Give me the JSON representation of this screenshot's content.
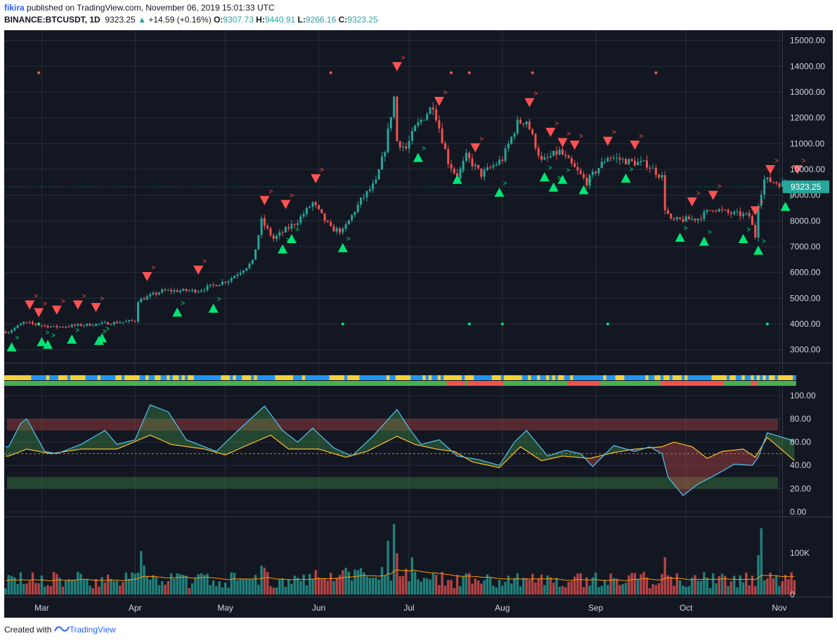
{
  "header": {
    "user": "fikira",
    "published_text": " published on TradingView.com, November 06, 2019 15:01:33 UTC",
    "symbol": "BINANCE:BTCUSDT, 1D",
    "last": "9323.25",
    "change": "+14.59 (+0.16%)",
    "open_label": "O:",
    "open": "9307.73",
    "high_label": "H:",
    "high": "9440.91",
    "low_label": "L:",
    "low": "9266.16",
    "close_label": "C:",
    "close": "9323.25"
  },
  "footer": {
    "created_with": "Created with",
    "brand": "TradingView"
  },
  "colors": {
    "bg": "#131722",
    "up": "#26a69a",
    "down": "#ef5350",
    "signal_up": "#00e676",
    "signal_down": "#ff5252",
    "grid": "#2a2e39",
    "text": "#d1d4dc",
    "price_tag": "#26a69a",
    "rsi_fast": "#4fc3f7",
    "rsi_slow": "#fbc02d",
    "vol_ma": "#ff9800"
  },
  "chart_data": [
    {
      "type": "candlestick",
      "title": "BINANCE:BTCUSDT, 1D",
      "y_ticks": [
        3000,
        4000,
        5000,
        6000,
        7000,
        8000,
        9000,
        10000,
        11000,
        12000,
        13000,
        14000,
        15000
      ],
      "y_tick_labels": [
        "3000.00",
        "4000.00",
        "5000.00",
        "6000.00",
        "7000.00",
        "8000.00",
        "9000.00",
        "10000.00",
        "11000.00",
        "12000.00",
        "13000.00",
        "14000.00",
        "15000.00"
      ],
      "ylim": [
        2500,
        15400
      ],
      "x_ticks": [
        "Mar",
        "Apr",
        "May",
        "Jun",
        "Jul",
        "Aug",
        "Sep",
        "Oct",
        "Nov"
      ],
      "last_price_label": "9323.25",
      "close_anchors": [
        [
          "2019-02-18",
          3700
        ],
        [
          "2019-02-23",
          4050
        ],
        [
          "2019-03-05",
          3880
        ],
        [
          "2019-03-20",
          4000
        ],
        [
          "2019-04-01",
          4120
        ],
        [
          "2019-04-02",
          4900
        ],
        [
          "2019-04-10",
          5280
        ],
        [
          "2019-04-22",
          5300
        ],
        [
          "2019-05-02",
          5700
        ],
        [
          "2019-05-10",
          6400
        ],
        [
          "2019-05-13",
          8000
        ],
        [
          "2019-05-17",
          7300
        ],
        [
          "2019-05-25",
          8000
        ],
        [
          "2019-05-30",
          8700
        ],
        [
          "2019-06-05",
          7700
        ],
        [
          "2019-06-09",
          7600
        ],
        [
          "2019-06-15",
          8800
        ],
        [
          "2019-06-20",
          9500
        ],
        [
          "2019-06-23",
          10800
        ],
        [
          "2019-06-26",
          12800
        ],
        [
          "2019-06-27",
          11100
        ],
        [
          "2019-06-30",
          10800
        ],
        [
          "2019-07-03",
          11600
        ],
        [
          "2019-07-09",
          12500
        ],
        [
          "2019-07-14",
          10300
        ],
        [
          "2019-07-17",
          9700
        ],
        [
          "2019-07-20",
          10500
        ],
        [
          "2019-07-25",
          9800
        ],
        [
          "2019-08-01",
          10400
        ],
        [
          "2019-08-06",
          11800
        ],
        [
          "2019-08-09",
          11900
        ],
        [
          "2019-08-14",
          10300
        ],
        [
          "2019-08-20",
          10700
        ],
        [
          "2019-08-29",
          9500
        ],
        [
          "2019-09-05",
          10500
        ],
        [
          "2019-09-12",
          10300
        ],
        [
          "2019-09-18",
          10200
        ],
        [
          "2019-09-23",
          9700
        ],
        [
          "2019-09-24",
          8500
        ],
        [
          "2019-09-26",
          8000
        ],
        [
          "2019-10-05",
          8100
        ],
        [
          "2019-10-10",
          8500
        ],
        [
          "2019-10-15",
          8300
        ],
        [
          "2019-10-22",
          8200
        ],
        [
          "2019-10-24",
          7400
        ],
        [
          "2019-10-25",
          8700
        ],
        [
          "2019-10-27",
          9600
        ],
        [
          "2019-11-06",
          9323
        ]
      ],
      "down_signals": [
        [
          "2019-02-25",
          4750
        ],
        [
          "2019-02-28",
          4450
        ],
        [
          "2019-03-06",
          4550
        ],
        [
          "2019-03-13",
          4750
        ],
        [
          "2019-03-19",
          4650
        ],
        [
          "2019-04-05",
          5850
        ],
        [
          "2019-04-22",
          6100
        ],
        [
          "2019-05-14",
          8800
        ],
        [
          "2019-05-21",
          8650
        ],
        [
          "2019-05-31",
          9650
        ],
        [
          "2019-06-27",
          14000
        ],
        [
          "2019-07-11",
          12650
        ],
        [
          "2019-07-23",
          10850
        ],
        [
          "2019-08-10",
          12600
        ],
        [
          "2019-08-17",
          11450
        ],
        [
          "2019-08-21",
          11050
        ],
        [
          "2019-08-25",
          10950
        ],
        [
          "2019-09-05",
          11100
        ],
        [
          "2019-09-14",
          10950
        ],
        [
          "2019-10-03",
          8750
        ],
        [
          "2019-10-10",
          9000
        ],
        [
          "2019-10-24",
          8400
        ],
        [
          "2019-10-29",
          10000
        ],
        [
          "2019-11-07",
          10000
        ]
      ],
      "up_signals": [
        [
          "2019-02-19",
          3100
        ],
        [
          "2019-03-01",
          3300
        ],
        [
          "2019-03-03",
          3200
        ],
        [
          "2019-03-11",
          3400
        ],
        [
          "2019-03-20",
          3350
        ],
        [
          "2019-03-21",
          3450
        ],
        [
          "2019-04-15",
          4450
        ],
        [
          "2019-04-27",
          4600
        ],
        [
          "2019-05-20",
          6900
        ],
        [
          "2019-05-23",
          7300
        ],
        [
          "2019-06-09",
          6950
        ],
        [
          "2019-07-04",
          10450
        ],
        [
          "2019-07-17",
          9600
        ],
        [
          "2019-07-31",
          9100
        ],
        [
          "2019-08-15",
          9700
        ],
        [
          "2019-08-18",
          9300
        ],
        [
          "2019-08-21",
          9600
        ],
        [
          "2019-08-28",
          9200
        ],
        [
          "2019-09-11",
          9650
        ],
        [
          "2019-09-29",
          7350
        ],
        [
          "2019-10-07",
          7200
        ],
        [
          "2019-10-20",
          7300
        ],
        [
          "2019-10-25",
          6850
        ],
        [
          "2019-11-03",
          8550
        ]
      ],
      "pivot_dots_top": [
        "2019-02-28",
        "2019-06-05",
        "2019-07-15",
        "2019-07-21",
        "2019-08-11",
        "2019-09-21"
      ],
      "pivot_dots_bottom": [
        "2019-02-28",
        "2019-06-09",
        "2019-07-21",
        "2019-08-01",
        "2019-09-05",
        "2019-10-28"
      ]
    },
    {
      "type": "line",
      "title": "",
      "y_ticks": [
        0,
        20,
        40,
        60,
        80,
        100
      ],
      "y_tick_labels": [
        "0.00",
        "20.00",
        "40.00",
        "60.00",
        "80.00",
        "100.00"
      ],
      "ylim": [
        -4,
        106
      ],
      "bands": [
        {
          "from": 70,
          "to": 80,
          "color": "#ef5350"
        },
        {
          "from": 20,
          "to": 30,
          "color": "#4caf50"
        }
      ],
      "midline": 50,
      "series": [
        {
          "color": "#4fc3f7",
          "anchors": [
            [
              "2019-02-18",
              56
            ],
            [
              "2019-02-22",
              76
            ],
            [
              "2019-02-24",
              80
            ],
            [
              "2019-03-02",
              52
            ],
            [
              "2019-03-06",
              50
            ],
            [
              "2019-03-14",
              58
            ],
            [
              "2019-03-22",
              70
            ],
            [
              "2019-03-26",
              58
            ],
            [
              "2019-04-01",
              62
            ],
            [
              "2019-04-06",
              92
            ],
            [
              "2019-04-12",
              86
            ],
            [
              "2019-04-18",
              62
            ],
            [
              "2019-04-23",
              57
            ],
            [
              "2019-04-28",
              52
            ],
            [
              "2019-05-06",
              72
            ],
            [
              "2019-05-14",
              91
            ],
            [
              "2019-05-20",
              70
            ],
            [
              "2019-05-25",
              60
            ],
            [
              "2019-05-30",
              72
            ],
            [
              "2019-06-06",
              55
            ],
            [
              "2019-06-12",
              48
            ],
            [
              "2019-06-19",
              65
            ],
            [
              "2019-06-27",
              88
            ],
            [
              "2019-07-01",
              72
            ],
            [
              "2019-07-05",
              58
            ],
            [
              "2019-07-11",
              62
            ],
            [
              "2019-07-17",
              48
            ],
            [
              "2019-07-24",
              45
            ],
            [
              "2019-07-31",
              40
            ],
            [
              "2019-08-05",
              60
            ],
            [
              "2019-08-09",
              70
            ],
            [
              "2019-08-16",
              48
            ],
            [
              "2019-08-22",
              53
            ],
            [
              "2019-08-27",
              50
            ],
            [
              "2019-08-31",
              39
            ],
            [
              "2019-09-07",
              57
            ],
            [
              "2019-09-14",
              52
            ],
            [
              "2019-09-19",
              56
            ],
            [
              "2019-09-23",
              50
            ],
            [
              "2019-09-25",
              30
            ],
            [
              "2019-09-30",
              14
            ],
            [
              "2019-10-05",
              24
            ],
            [
              "2019-10-11",
              32
            ],
            [
              "2019-10-17",
              41
            ],
            [
              "2019-10-23",
              40
            ],
            [
              "2019-10-25",
              47
            ],
            [
              "2019-10-28",
              68
            ],
            [
              "2019-11-06",
              61
            ]
          ]
        },
        {
          "color": "#fbc02d",
          "anchors": [
            [
              "2019-02-18",
              48
            ],
            [
              "2019-02-24",
              54
            ],
            [
              "2019-03-04",
              50
            ],
            [
              "2019-03-14",
              54
            ],
            [
              "2019-03-26",
              54
            ],
            [
              "2019-04-06",
              66
            ],
            [
              "2019-04-13",
              58
            ],
            [
              "2019-04-24",
              54
            ],
            [
              "2019-05-01",
              49
            ],
            [
              "2019-05-08",
              57
            ],
            [
              "2019-05-16",
              66
            ],
            [
              "2019-05-22",
              54
            ],
            [
              "2019-06-01",
              54
            ],
            [
              "2019-06-10",
              47
            ],
            [
              "2019-06-17",
              52
            ],
            [
              "2019-06-27",
              65
            ],
            [
              "2019-07-03",
              58
            ],
            [
              "2019-07-10",
              54
            ],
            [
              "2019-07-16",
              52
            ],
            [
              "2019-07-22",
              43
            ],
            [
              "2019-07-31",
              38
            ],
            [
              "2019-08-07",
              56
            ],
            [
              "2019-08-14",
              44
            ],
            [
              "2019-08-21",
              48
            ],
            [
              "2019-08-30",
              46
            ],
            [
              "2019-09-07",
              51
            ],
            [
              "2019-09-14",
              54
            ],
            [
              "2019-09-23",
              56
            ],
            [
              "2019-09-27",
              60
            ],
            [
              "2019-10-03",
              56
            ],
            [
              "2019-10-08",
              46
            ],
            [
              "2019-10-13",
              52
            ],
            [
              "2019-10-20",
              54
            ],
            [
              "2019-10-24",
              47
            ],
            [
              "2019-10-28",
              64
            ],
            [
              "2019-11-06",
              44
            ]
          ]
        }
      ]
    },
    {
      "type": "bar",
      "title": "",
      "y_ticks": [
        0,
        100000
      ],
      "y_tick_labels": [
        "0",
        "100K"
      ],
      "ylim": [
        -5000,
        185000
      ],
      "spikes": [
        [
          "2019-04-03",
          105000
        ],
        [
          "2019-04-04",
          70000
        ],
        [
          "2019-05-13",
          70000
        ],
        [
          "2019-05-14",
          65000
        ],
        [
          "2019-06-26",
          170000
        ],
        [
          "2019-06-24",
          130000
        ],
        [
          "2019-06-27",
          100000
        ],
        [
          "2019-07-02",
          90000
        ],
        [
          "2019-09-24",
          90000
        ],
        [
          "2019-10-26",
          160000
        ],
        [
          "2019-10-25",
          95000
        ]
      ]
    }
  ]
}
